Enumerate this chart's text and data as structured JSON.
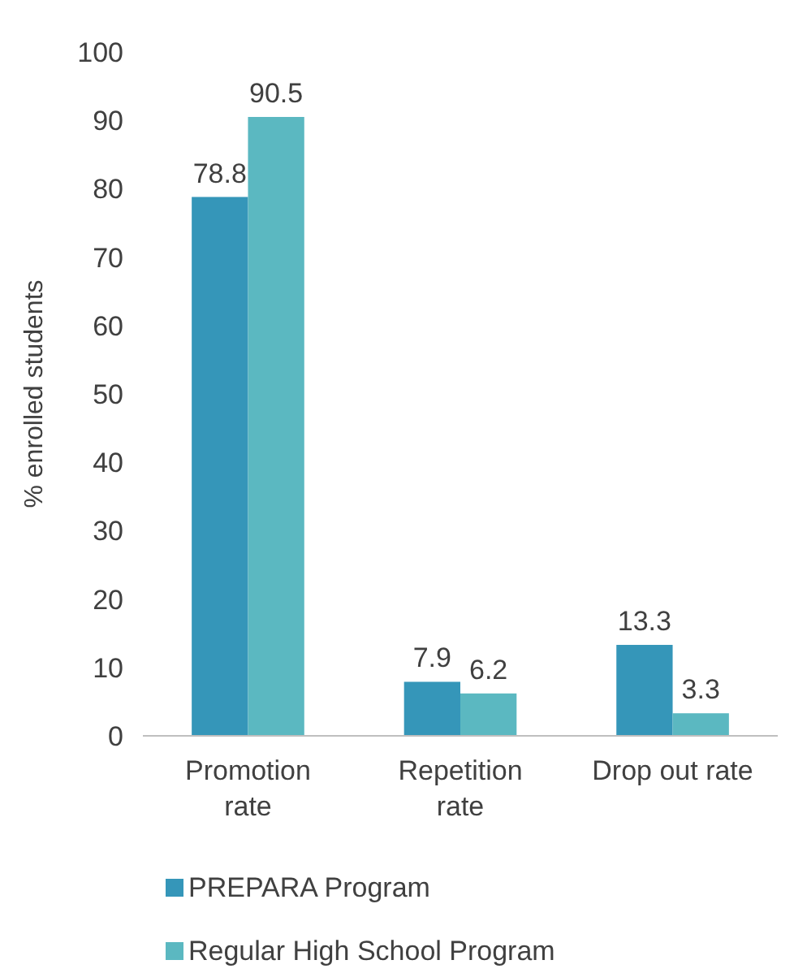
{
  "chart_data": {
    "type": "bar",
    "ylabel": "% enrolled students",
    "categories": [
      "Promotion rate",
      "Repetition rate",
      "Drop out rate"
    ],
    "series": [
      {
        "name": "PREPARA Program",
        "color": "#3596b9",
        "values": [
          78.8,
          7.9,
          13.3
        ]
      },
      {
        "name": "Regular High School Program",
        "color": "#5bb8c1",
        "values": [
          90.5,
          6.2,
          3.3
        ]
      }
    ],
    "ylim": [
      0,
      100
    ],
    "yticks": [
      0,
      10,
      20,
      30,
      40,
      50,
      60,
      70,
      80,
      90,
      100
    ],
    "data_labels": true,
    "legend": "bottom",
    "grid": false
  }
}
